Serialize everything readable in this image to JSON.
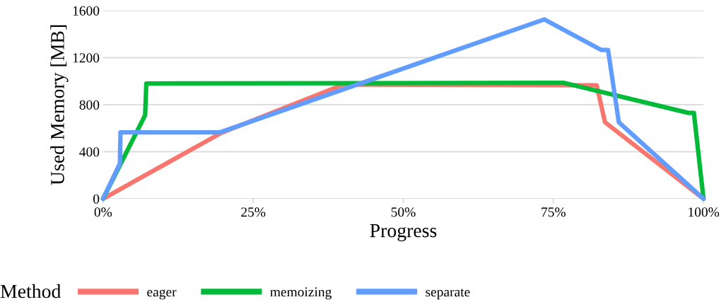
{
  "chart_data": {
    "type": "line",
    "xlabel": "Progress",
    "ylabel": "Used Memory [MB]",
    "legend_title": "Method",
    "legend": "bottom",
    "grid": "y",
    "line_style": "solid",
    "marker": "none",
    "xlim": [
      0,
      100
    ],
    "ylim": [
      0,
      1600
    ],
    "xticks": [
      {
        "value": 0,
        "label": "0%"
      },
      {
        "value": 25,
        "label": "25%"
      },
      {
        "value": 50,
        "label": "50%"
      },
      {
        "value": 75,
        "label": "75%"
      },
      {
        "value": 100,
        "label": "100%"
      }
    ],
    "yticks": [
      0,
      400,
      800,
      1200,
      1600
    ],
    "series": [
      {
        "name": "eager",
        "color": "#f8766d",
        "x": [
          0,
          19.7,
          40,
          82.2,
          83.6,
          100
        ],
        "values": [
          0,
          560,
          970,
          965,
          650,
          0
        ]
      },
      {
        "name": "memoizing",
        "color": "#00ba38",
        "x": [
          0,
          7.0,
          7.2,
          76.8,
          97.5,
          98.4,
          100
        ],
        "values": [
          0,
          710,
          980,
          985,
          730,
          730,
          0
        ]
      },
      {
        "name": "separate",
        "color": "#619cff",
        "x": [
          0,
          2.8,
          2.9,
          19.5,
          73.5,
          83.0,
          84.1,
          85.9,
          100
        ],
        "values": [
          0,
          300,
          565,
          565,
          1525,
          1265,
          1265,
          650,
          0
        ]
      }
    ]
  }
}
